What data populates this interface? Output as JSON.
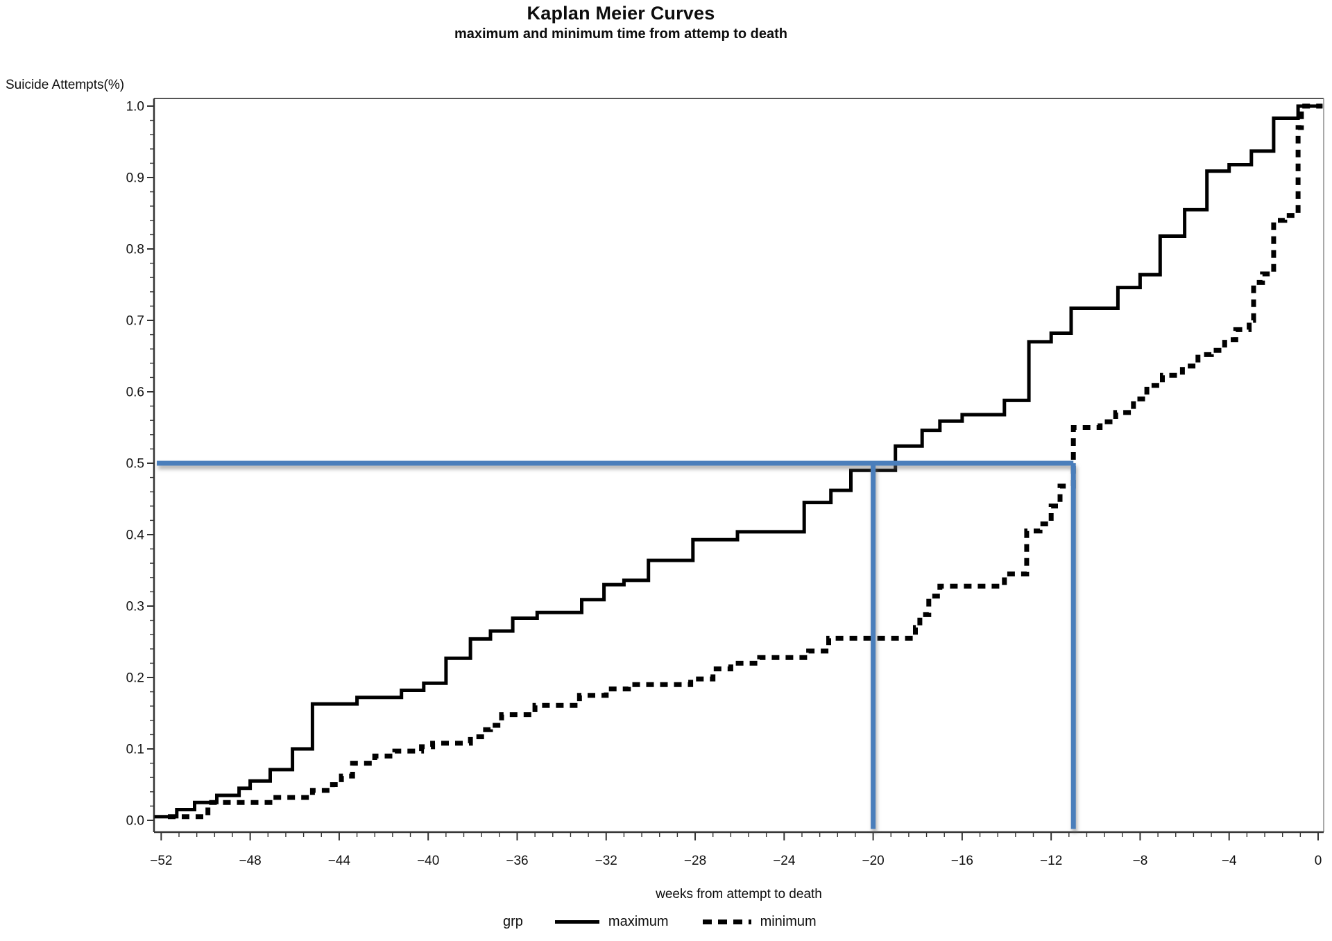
{
  "chart": {
    "title": "Kaplan Meier Curves",
    "subtitle": "maximum and minimum time from attemp to death",
    "ylabel": "Suicide Attempts(%)",
    "xlabel": "weeks from attempt to death"
  },
  "legend": {
    "group_label": "grp",
    "items": [
      {
        "label": "maximum",
        "style": "solid"
      },
      {
        "label": "minimum",
        "style": "dashed"
      }
    ]
  },
  "colors": {
    "curve": "#000000",
    "reference_blue": "#4a7ebb",
    "axis": "#333333",
    "frame": "#8c8c8c",
    "text": "#111111"
  },
  "chart_data": {
    "type": "line",
    "step_mode": "post",
    "title": "Kaplan Meier Curves",
    "subtitle": "maximum and minimum time from attemp to death",
    "xlabel": "weeks from attempt to death",
    "ylabel": "Suicide Attempts(%)",
    "xlim": [
      -52.3,
      0.25
    ],
    "ylim": [
      -0.017,
      1.011
    ],
    "grid": false,
    "legend_position": "bottom",
    "x_major_ticks": [
      -52,
      -48,
      -44,
      -40,
      -36,
      -32,
      -28,
      -24,
      -20,
      -16,
      -12,
      -8,
      -4,
      0
    ],
    "x_tick_labels": [
      "−52",
      "−48",
      "−44",
      "−40",
      "−36",
      "−32",
      "−28",
      "−24",
      "−20",
      "−16",
      "−12",
      "−8",
      "−4",
      "0"
    ],
    "x_minor_step": 0.8,
    "y_major_ticks": [
      0.0,
      0.1,
      0.2,
      0.3,
      0.4,
      0.5,
      0.6,
      0.7,
      0.8,
      0.9,
      1.0
    ],
    "y_tick_labels": [
      "0.0",
      "0.1",
      "0.2",
      "0.3",
      "0.4",
      "0.5",
      "0.6",
      "0.7",
      "0.8",
      "0.9",
      "1.0"
    ],
    "y_minor_step": 0.02,
    "series": [
      {
        "name": "maximum",
        "line_style": "solid",
        "line_width": 5,
        "color": "#000000",
        "points": [
          [
            -52.3,
            0.005
          ],
          [
            -51.3,
            0.015
          ],
          [
            -50.5,
            0.025
          ],
          [
            -49.5,
            0.035
          ],
          [
            -48.5,
            0.045
          ],
          [
            -48.0,
            0.055
          ],
          [
            -47.1,
            0.071
          ],
          [
            -46.1,
            0.1
          ],
          [
            -45.2,
            0.163
          ],
          [
            -43.2,
            0.172
          ],
          [
            -41.2,
            0.182
          ],
          [
            -40.2,
            0.192
          ],
          [
            -39.2,
            0.227
          ],
          [
            -38.1,
            0.254
          ],
          [
            -37.2,
            0.265
          ],
          [
            -36.2,
            0.283
          ],
          [
            -35.1,
            0.291
          ],
          [
            -33.1,
            0.309
          ],
          [
            -32.1,
            0.33
          ],
          [
            -31.2,
            0.336
          ],
          [
            -30.1,
            0.364
          ],
          [
            -28.1,
            0.393
          ],
          [
            -26.1,
            0.404
          ],
          [
            -23.1,
            0.445
          ],
          [
            -21.9,
            0.462
          ],
          [
            -21.0,
            0.49
          ],
          [
            -19.0,
            0.524
          ],
          [
            -17.8,
            0.546
          ],
          [
            -17.0,
            0.559
          ],
          [
            -16.0,
            0.568
          ],
          [
            -14.1,
            0.588
          ],
          [
            -13.0,
            0.67
          ],
          [
            -12.0,
            0.682
          ],
          [
            -11.1,
            0.717
          ],
          [
            -9.0,
            0.746
          ],
          [
            -8.0,
            0.764
          ],
          [
            -7.1,
            0.818
          ],
          [
            -6.0,
            0.855
          ],
          [
            -5.0,
            0.909
          ],
          [
            -4.0,
            0.918
          ],
          [
            -3.0,
            0.937
          ],
          [
            -2.0,
            0.983
          ],
          [
            -0.9,
            1.0
          ],
          [
            0.2,
            1.0
          ]
        ]
      },
      {
        "name": "minimum",
        "line_style": "dashed",
        "line_width": 7,
        "color": "#000000",
        "points": [
          [
            -51.7,
            0.005
          ],
          [
            -49.9,
            0.025
          ],
          [
            -47.0,
            0.032
          ],
          [
            -45.2,
            0.042
          ],
          [
            -44.3,
            0.05
          ],
          [
            -43.9,
            0.062
          ],
          [
            -43.4,
            0.08
          ],
          [
            -42.4,
            0.09
          ],
          [
            -41.5,
            0.097
          ],
          [
            -40.3,
            0.103
          ],
          [
            -39.8,
            0.108
          ],
          [
            -38.1,
            0.117
          ],
          [
            -37.6,
            0.127
          ],
          [
            -37.2,
            0.133
          ],
          [
            -36.7,
            0.148
          ],
          [
            -35.2,
            0.161
          ],
          [
            -33.2,
            0.175
          ],
          [
            -32.0,
            0.184
          ],
          [
            -31.0,
            0.19
          ],
          [
            -28.2,
            0.198
          ],
          [
            -27.2,
            0.212
          ],
          [
            -26.4,
            0.22
          ],
          [
            -25.1,
            0.228
          ],
          [
            -22.9,
            0.237
          ],
          [
            -22.0,
            0.255
          ],
          [
            -18.1,
            0.27
          ],
          [
            -17.9,
            0.288
          ],
          [
            -17.5,
            0.314
          ],
          [
            -17.0,
            0.328
          ],
          [
            -14.1,
            0.345
          ],
          [
            -13.1,
            0.405
          ],
          [
            -12.5,
            0.415
          ],
          [
            -12.0,
            0.44
          ],
          [
            -11.6,
            0.468
          ],
          [
            -11.0,
            0.55
          ],
          [
            -9.8,
            0.558
          ],
          [
            -9.1,
            0.571
          ],
          [
            -8.3,
            0.59
          ],
          [
            -7.7,
            0.609
          ],
          [
            -7.0,
            0.623
          ],
          [
            -6.1,
            0.636
          ],
          [
            -5.4,
            0.652
          ],
          [
            -4.8,
            0.658
          ],
          [
            -4.2,
            0.673
          ],
          [
            -3.7,
            0.687
          ],
          [
            -3.1,
            0.7
          ],
          [
            -2.9,
            0.753
          ],
          [
            -2.5,
            0.765
          ],
          [
            -2.0,
            0.84
          ],
          [
            -1.5,
            0.847
          ],
          [
            -0.9,
            0.97
          ],
          [
            -0.75,
            1.0
          ],
          [
            0.2,
            1.0
          ]
        ]
      }
    ],
    "reference_lines": {
      "color": "#4a7ebb",
      "width": 7,
      "horizontal": {
        "value": 0.5,
        "from_x": -52.2,
        "to_x": -11.0
      },
      "verticals": [
        {
          "x": -20.0,
          "from_y": 0.5,
          "to_y": -0.012
        },
        {
          "x": -11.0,
          "from_y": 0.5,
          "to_y": -0.012
        }
      ]
    },
    "annotations": [
      "blue reference lines mark median survival: horizontal at 0.5 crossing maximum curve near week -20 and minimum curve near week -11"
    ]
  }
}
